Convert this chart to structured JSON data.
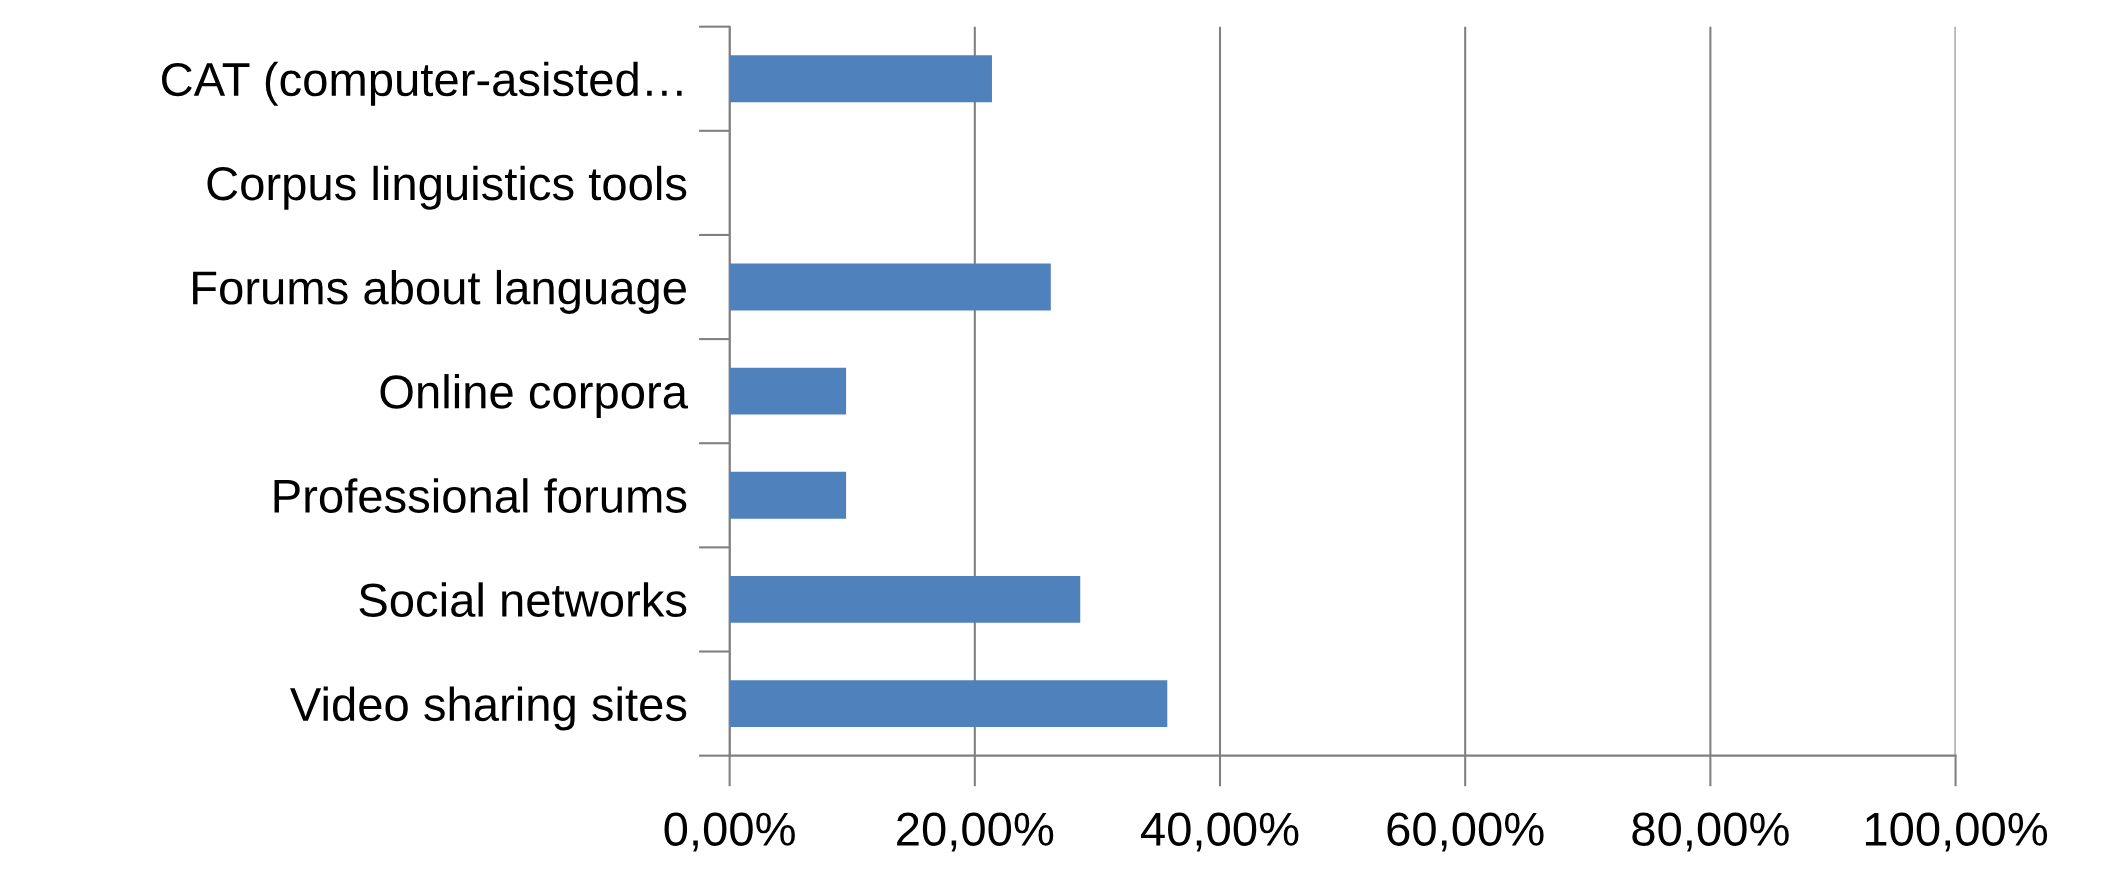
{
  "chart_data": {
    "type": "bar",
    "orientation": "horizontal",
    "categories": [
      "CAT (computer-asisted…",
      "Corpus linguistics tools",
      "Forums about language",
      "Online corpora",
      "Professional forums",
      "Social networks",
      "Video sharing sites"
    ],
    "values": [
      21.4,
      0,
      26.2,
      9.5,
      9.5,
      28.6,
      35.7
    ],
    "color": "#4f81bd",
    "xlim": [
      0,
      100
    ],
    "xticks": [
      {
        "value": 0,
        "label": "0,00%"
      },
      {
        "value": 20,
        "label": "20,00%"
      },
      {
        "value": 40,
        "label": "40,00%"
      },
      {
        "value": 60,
        "label": "60,00%"
      },
      {
        "value": 80,
        "label": "80,00%"
      },
      {
        "value": 100,
        "label": "100,00%"
      }
    ],
    "grid": "x",
    "legend": false
  }
}
